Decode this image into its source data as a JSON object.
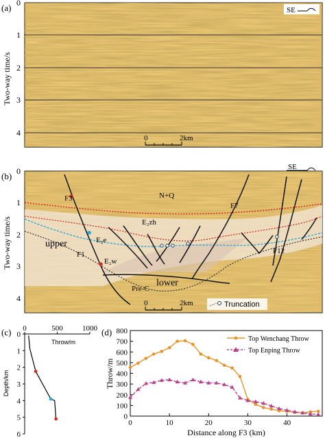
{
  "panel_a": {
    "label": "(a)",
    "ylabel": "Two-way time/s",
    "yticks": [
      "0",
      "1",
      "2",
      "3",
      "4"
    ],
    "scalebar": {
      "left": "0",
      "right": "2km"
    },
    "direction": "SE",
    "colors": {
      "seismic_base": "#e9c774",
      "seismic_dark": "#b48a3a",
      "horizon": "#333333"
    }
  },
  "panel_b": {
    "label": "(b)",
    "ylabel": "Two-way time/s",
    "yticks": [
      "0",
      "1",
      "2",
      "3",
      "4"
    ],
    "scalebar": {
      "left": "0",
      "right": "2km"
    },
    "direction": "SE",
    "unit_labels": [
      "N+Q",
      "E₂zh",
      "E₂e",
      "E₂w",
      "Pre-C",
      "upper",
      "lower"
    ],
    "fault_labels": [
      "F3",
      "F7",
      "F1",
      "F12"
    ],
    "legend_truncation": "Truncation",
    "colors": {
      "red_horizon": "#d62b1e",
      "blue_horizon": "#2aa7d6",
      "fault": "#111111",
      "fill": "#d9c3b3"
    }
  },
  "panel_c": {
    "label": "(c)",
    "xlabel": "Throw/m",
    "ylabel": "Depth/km",
    "xticks": [
      "0",
      "500",
      "1000"
    ],
    "yticks": [
      "0",
      "1",
      "2",
      "3",
      "4",
      "5",
      "6"
    ],
    "chart_data": {
      "type": "line",
      "xlim": [
        0,
        1000
      ],
      "ylim": [
        0,
        6
      ],
      "series": [
        {
          "values": [
            [
              60,
              0.1
            ],
            [
              80,
              0.9
            ],
            [
              170,
              2.25
            ],
            [
              400,
              3.9
            ],
            [
              460,
              4.0
            ],
            [
              480,
              5.1
            ]
          ]
        }
      ],
      "marker_colors": [
        "#d62b1e",
        "#2aa7d6",
        "#d62b1e"
      ]
    }
  },
  "panel_d": {
    "label": "(d)",
    "xlabel": "Distance along F3 (km)",
    "ylabel": "Throw/m",
    "xticks": [
      "0",
      "10",
      "20",
      "30",
      "40"
    ],
    "yticks": [
      "0",
      "100",
      "200",
      "300",
      "400",
      "500",
      "600",
      "700",
      "800"
    ],
    "chart_data": {
      "type": "line",
      "xlim": [
        0,
        49
      ],
      "ylim": [
        0,
        800
      ],
      "series": [
        {
          "name": "Top Wenchang Throw",
          "color": "#e8922b",
          "marker": "circle",
          "x": [
            0,
            2,
            4,
            6,
            8,
            10,
            12,
            14,
            16,
            18,
            20,
            22,
            24,
            26,
            28,
            30,
            32,
            34,
            36,
            38,
            40,
            42,
            44,
            46,
            48
          ],
          "values": [
            455,
            495,
            540,
            580,
            605,
            640,
            700,
            705,
            670,
            580,
            545,
            520,
            475,
            450,
            370,
            155,
            110,
            80,
            65,
            50,
            45,
            35,
            30,
            40,
            45
          ]
        },
        {
          "name": "Top Enping Throw",
          "color": "#b8418a",
          "marker": "triangle",
          "x": [
            0,
            2,
            4,
            6,
            8,
            10,
            12,
            14,
            16,
            18,
            20,
            22,
            24,
            26,
            28,
            30,
            32,
            34,
            36,
            38,
            40,
            42,
            44,
            46,
            48
          ],
          "values": [
            175,
            250,
            305,
            315,
            335,
            340,
            320,
            310,
            340,
            320,
            310,
            310,
            295,
            270,
            170,
            145,
            135,
            120,
            95,
            70,
            55,
            40,
            30,
            20,
            15
          ]
        }
      ]
    }
  }
}
